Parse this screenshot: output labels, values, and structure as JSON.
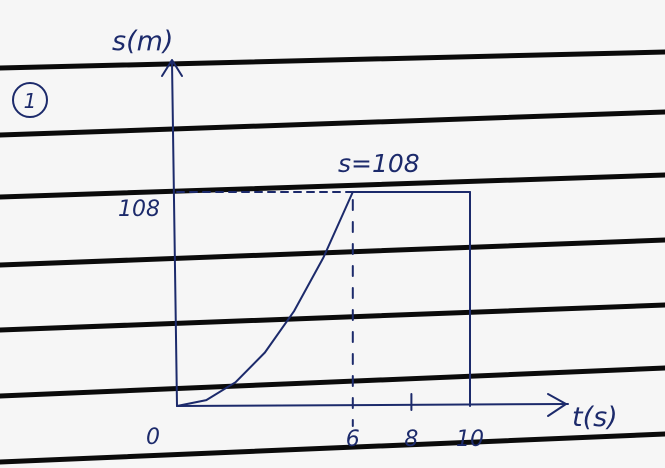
{
  "page": {
    "problem_number": "1"
  },
  "chart_data": {
    "type": "line",
    "xlabel": "t(s)",
    "ylabel": "s(m)",
    "origin_label": "0",
    "x_ticks": [
      "6",
      "8",
      "10"
    ],
    "y_ticks": [
      "108"
    ],
    "annotations": [
      "s=108"
    ],
    "series": [
      {
        "x": [
          0,
          1,
          2,
          3,
          4,
          5,
          6,
          10
        ],
        "y": [
          0,
          3,
          12,
          27,
          48,
          75,
          108,
          108
        ]
      }
    ],
    "xlim": [
      0,
      10
    ],
    "ylim": [
      0,
      130
    ],
    "grid": false,
    "legend": "none",
    "colors": {
      "ink": "#1c2a6b",
      "paper": "#f6f6f6",
      "rule": "#0b0b0b"
    }
  }
}
